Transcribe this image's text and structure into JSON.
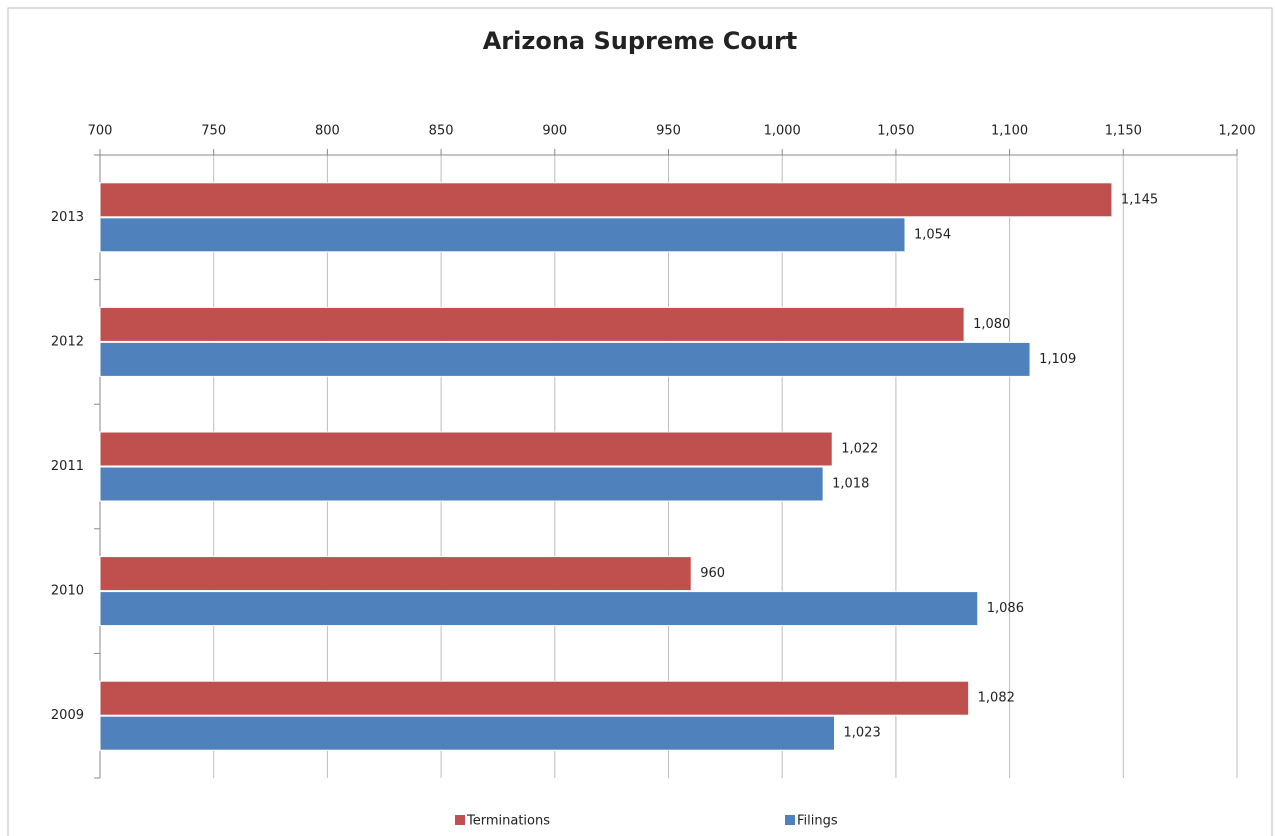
{
  "chart_data": {
    "type": "hbar",
    "title": "Arizona Supreme Court",
    "categories": [
      "2013",
      "2012",
      "2011",
      "2010",
      "2009"
    ],
    "series": [
      {
        "name": "Terminations",
        "color": "#c0504d",
        "values": [
          1145,
          1080,
          1022,
          960,
          1082
        ],
        "value_labels": [
          "1,145",
          "1,080",
          "1,022",
          "960",
          "1,082"
        ]
      },
      {
        "name": "Filings",
        "color": "#4f81bd",
        "values": [
          1054,
          1109,
          1018,
          1086,
          1023
        ],
        "value_labels": [
          "1,054",
          "1,109",
          "1,018",
          "1,086",
          "1,023"
        ]
      }
    ],
    "xlim": [
      700,
      1200
    ],
    "xticks": [
      700,
      750,
      800,
      850,
      900,
      950,
      {
        "value": 1000,
        "label": "1,000"
      },
      {
        "value": 1050,
        "label": "1,050"
      },
      {
        "value": 1100,
        "label": "1,100"
      },
      {
        "value": 1150,
        "label": "1,150"
      },
      {
        "value": 1200,
        "label": "1,200"
      }
    ],
    "grid": true,
    "legend": "bottom"
  }
}
